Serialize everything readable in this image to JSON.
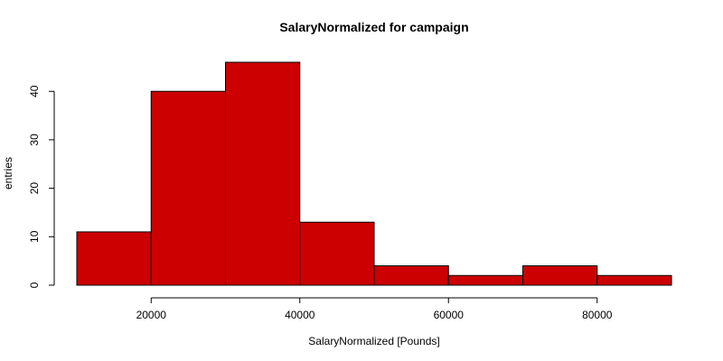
{
  "chart_data": {
    "type": "bar",
    "title": "SalaryNormalized for campaign",
    "xlabel": "SalaryNormalized [Pounds]",
    "ylabel": "entries",
    "bins": [
      {
        "from": 10000,
        "to": 20000,
        "count": 11
      },
      {
        "from": 20000,
        "to": 30000,
        "count": 40
      },
      {
        "from": 30000,
        "to": 40000,
        "count": 46
      },
      {
        "from": 40000,
        "to": 50000,
        "count": 13
      },
      {
        "from": 50000,
        "to": 60000,
        "count": 4
      },
      {
        "from": 60000,
        "to": 70000,
        "count": 2
      },
      {
        "from": 70000,
        "to": 80000,
        "count": 4
      },
      {
        "from": 80000,
        "to": 90000,
        "count": 2
      }
    ],
    "xlim": [
      10000,
      90000
    ],
    "ylim": [
      0,
      46
    ],
    "xticks": [
      20000,
      40000,
      60000,
      80000
    ],
    "yticks": [
      0,
      10,
      20,
      30,
      40
    ],
    "bar_color": "#cc0000",
    "grid": false
  }
}
